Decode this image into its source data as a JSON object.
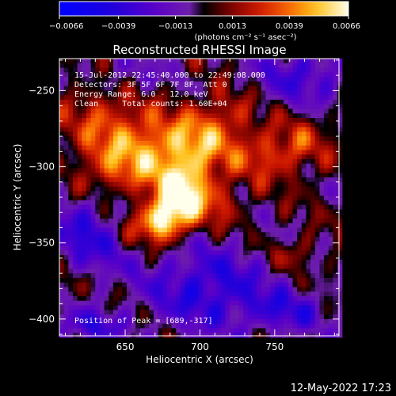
{
  "chart_data": {
    "type": "heatmap",
    "title": "Reconstructed RHESSI Image",
    "xlabel": "Heliocentric X (arcsec)",
    "ylabel": "Heliocentric Y (arcsec)",
    "xlim": [
      606,
      793
    ],
    "ylim": [
      -411,
      -229
    ],
    "x_ticks": [
      650,
      700,
      750
    ],
    "y_ticks": [
      -400,
      -350,
      -300,
      -250
    ],
    "colorbar": {
      "colormap": "rainbow-of-hot",
      "range": [
        -0.0066,
        0.0066
      ],
      "tick_values": [
        -0.0066,
        -0.0039,
        -0.0013,
        0.0013,
        0.0039,
        0.0066
      ],
      "tick_labels": [
        "−0.0066",
        "−0.0039",
        "−0.0013",
        "0.0013",
        "0.0039",
        "0.0066"
      ],
      "units_label": "(photons cm⁻² s⁻¹ asec⁻²)"
    },
    "annotations": [
      "15-Jul-2012 22:45:40.000 to 22:49:08.000",
      "Detectors: 3F 5F 6F 7F 8F, Att 0",
      "Energy Range: 6.0 - 12.0 keV",
      "Clean     Total counts: 1.60E+04"
    ],
    "peak_label": "Position of Peak = [689,-317]",
    "peak": [
      689,
      -317
    ],
    "sources": [
      {
        "x": 689,
        "y": -317,
        "amp": 0.0066,
        "sx": 13,
        "sy": 14
      },
      {
        "x": 676,
        "y": -335,
        "amp": 0.0052,
        "sx": 10,
        "sy": 9
      },
      {
        "x": 667,
        "y": -287,
        "amp": 0.0038,
        "sx": 20,
        "sy": 16
      },
      {
        "x": 700,
        "y": -285,
        "amp": 0.0034,
        "sx": 16,
        "sy": 14
      },
      {
        "x": 635,
        "y": -268,
        "amp": 0.0026,
        "sx": 18,
        "sy": 20
      },
      {
        "x": 640,
        "y": -305,
        "amp": 0.0024,
        "sx": 18,
        "sy": 12
      },
      {
        "x": 745,
        "y": -292,
        "amp": 0.0029,
        "sx": 18,
        "sy": 12
      },
      {
        "x": 718,
        "y": -265,
        "amp": 0.002,
        "sx": 14,
        "sy": 12
      },
      {
        "x": 770,
        "y": -283,
        "amp": 0.0016,
        "sx": 12,
        "sy": 12
      },
      {
        "x": 660,
        "y": -340,
        "amp": 0.0022,
        "sx": 14,
        "sy": 10
      },
      {
        "x": 715,
        "y": -325,
        "amp": 0.0018,
        "sx": 10,
        "sy": 10
      },
      {
        "x": 762,
        "y": -357,
        "amp": 0.0019,
        "sx": 10,
        "sy": 7
      },
      {
        "x": 612,
        "y": -378,
        "amp": 0.0017,
        "sx": 6,
        "sy": 8
      },
      {
        "x": 705,
        "y": -380,
        "amp": -0.004,
        "sx": 30,
        "sy": 20
      },
      {
        "x": 625,
        "y": -345,
        "amp": -0.0035,
        "sx": 20,
        "sy": 20
      },
      {
        "x": 770,
        "y": -240,
        "amp": -0.003,
        "sx": 25,
        "sy": 14
      },
      {
        "x": 650,
        "y": -240,
        "amp": -0.002,
        "sx": 20,
        "sy": 10
      },
      {
        "x": 760,
        "y": -395,
        "amp": -0.0028,
        "sx": 20,
        "sy": 10
      },
      {
        "x": 625,
        "y": -405,
        "amp": -0.003,
        "sx": 18,
        "sy": 8
      }
    ]
  },
  "footer_timestamp": "12-May-2022 17:23"
}
